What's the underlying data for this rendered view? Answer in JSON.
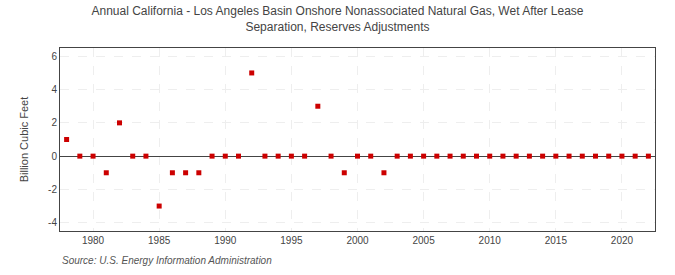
{
  "chart_data": {
    "type": "scatter",
    "title": "Annual California - Los Angeles Basin Onshore Nonassociated Natural Gas, Wet After Lease\nSeparation, Reserves Adjustments",
    "ylabel": "Billion Cubic Feet",
    "annotations": [
      "Source: U.S. Energy Information Administration"
    ],
    "x": [
      1978,
      1979,
      1980,
      1981,
      1982,
      1983,
      1984,
      1985,
      1986,
      1987,
      1988,
      1989,
      1990,
      1991,
      1992,
      1993,
      1994,
      1995,
      1996,
      1997,
      1998,
      1999,
      2000,
      2001,
      2002,
      2003,
      2004,
      2005,
      2006,
      2007,
      2008,
      2009,
      2010,
      2011,
      2012,
      2013,
      2014,
      2015,
      2016,
      2017,
      2018,
      2019,
      2020,
      2021,
      2022
    ],
    "values": [
      1.0,
      0.0,
      0.0,
      -1.0,
      2.0,
      0.0,
      0.0,
      -3.0,
      -1.0,
      -1.0,
      -1.0,
      0.0,
      0.0,
      0.0,
      5.0,
      0.0,
      0.0,
      0.0,
      0.0,
      3.0,
      0.0,
      -1.0,
      0.0,
      0.0,
      -1.0,
      0.0,
      0.0,
      0.0,
      0.0,
      0.0,
      0.0,
      0.0,
      0.0,
      0.0,
      0.0,
      0.0,
      0.0,
      0.0,
      0.0,
      0.0,
      0.0,
      0.0,
      0.0,
      0.0,
      0.0
    ],
    "xlim": [
      1977.5,
      2022.5
    ],
    "ylim": [
      -4.5,
      6.5
    ],
    "xticks": [
      1980,
      1985,
      1990,
      1995,
      2000,
      2005,
      2010,
      2015,
      2020
    ],
    "yticks": [
      -4,
      -2,
      0,
      2,
      4,
      6
    ],
    "grid": true,
    "color": "#cc0000",
    "marker": "square"
  }
}
